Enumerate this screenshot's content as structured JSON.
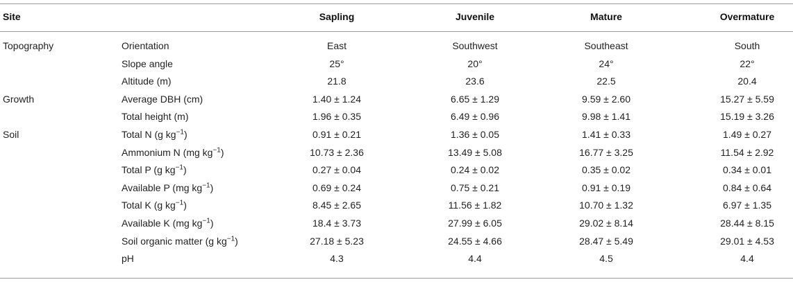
{
  "header": {
    "site": "Site",
    "columns": [
      "Sapling",
      "Juvenile",
      "Mature",
      "Overmature"
    ]
  },
  "rows": [
    {
      "group": "Topography",
      "variable": "Orientation",
      "values": [
        "East",
        "Southwest",
        "Southeast",
        "South"
      ]
    },
    {
      "group": "",
      "variable": "Slope angle",
      "values": [
        "25°",
        "20°",
        "24°",
        "22°"
      ]
    },
    {
      "group": "",
      "variable": "Altitude (m)",
      "values": [
        "21.8",
        "23.6",
        "22.5",
        "20.4"
      ]
    },
    {
      "group": "Growth",
      "variable": "Average DBH (cm)",
      "values": [
        "1.40 ± 1.24",
        "6.65 ± 1.29",
        "9.59 ± 2.60",
        "15.27 ± 5.59"
      ]
    },
    {
      "group": "",
      "variable": "Total height (m)",
      "values": [
        "1.96 ± 0.35",
        "6.49 ± 0.96",
        "9.98 ± 1.41",
        "15.19 ± 3.26"
      ]
    },
    {
      "group": "Soil",
      "variable": "Total N (g kg−1)",
      "values": [
        "0.91 ± 0.21",
        "1.36 ± 0.05",
        "1.41 ± 0.33",
        "1.49 ± 0.27"
      ]
    },
    {
      "group": "",
      "variable": "Ammonium N (mg kg−1)",
      "values": [
        "10.73 ± 2.36",
        "13.49 ± 5.08",
        "16.77 ± 3.25",
        "11.54 ± 2.92"
      ]
    },
    {
      "group": "",
      "variable": "Total P (g kg−1)",
      "values": [
        "0.27 ± 0.04",
        "0.24 ± 0.02",
        "0.35 ± 0.02",
        "0.34 ± 0.01"
      ]
    },
    {
      "group": "",
      "variable": "Available P (mg kg−1)",
      "values": [
        "0.69 ± 0.24",
        "0.75 ± 0.21",
        "0.91 ± 0.19",
        "0.84 ± 0.64"
      ]
    },
    {
      "group": "",
      "variable": "Total K (g kg−1)",
      "values": [
        "8.45 ± 2.65",
        "11.56 ± 1.82",
        "10.70 ± 1.32",
        "6.97 ± 1.35"
      ]
    },
    {
      "group": "",
      "variable": "Available K (mg kg−1)",
      "values": [
        "18.4 ± 3.73",
        "27.99 ± 6.05",
        "29.02 ± 8.14",
        "28.44 ± 8.15"
      ]
    },
    {
      "group": "",
      "variable": "Soil organic matter (g kg−1)",
      "values": [
        "27.18 ± 5.23",
        "24.55 ± 4.66",
        "28.47 ± 5.49",
        "29.01 ± 4.53"
      ]
    },
    {
      "group": "",
      "variable": "pH",
      "values": [
        "4.3",
        "4.4",
        "4.5",
        "4.4"
      ]
    }
  ]
}
